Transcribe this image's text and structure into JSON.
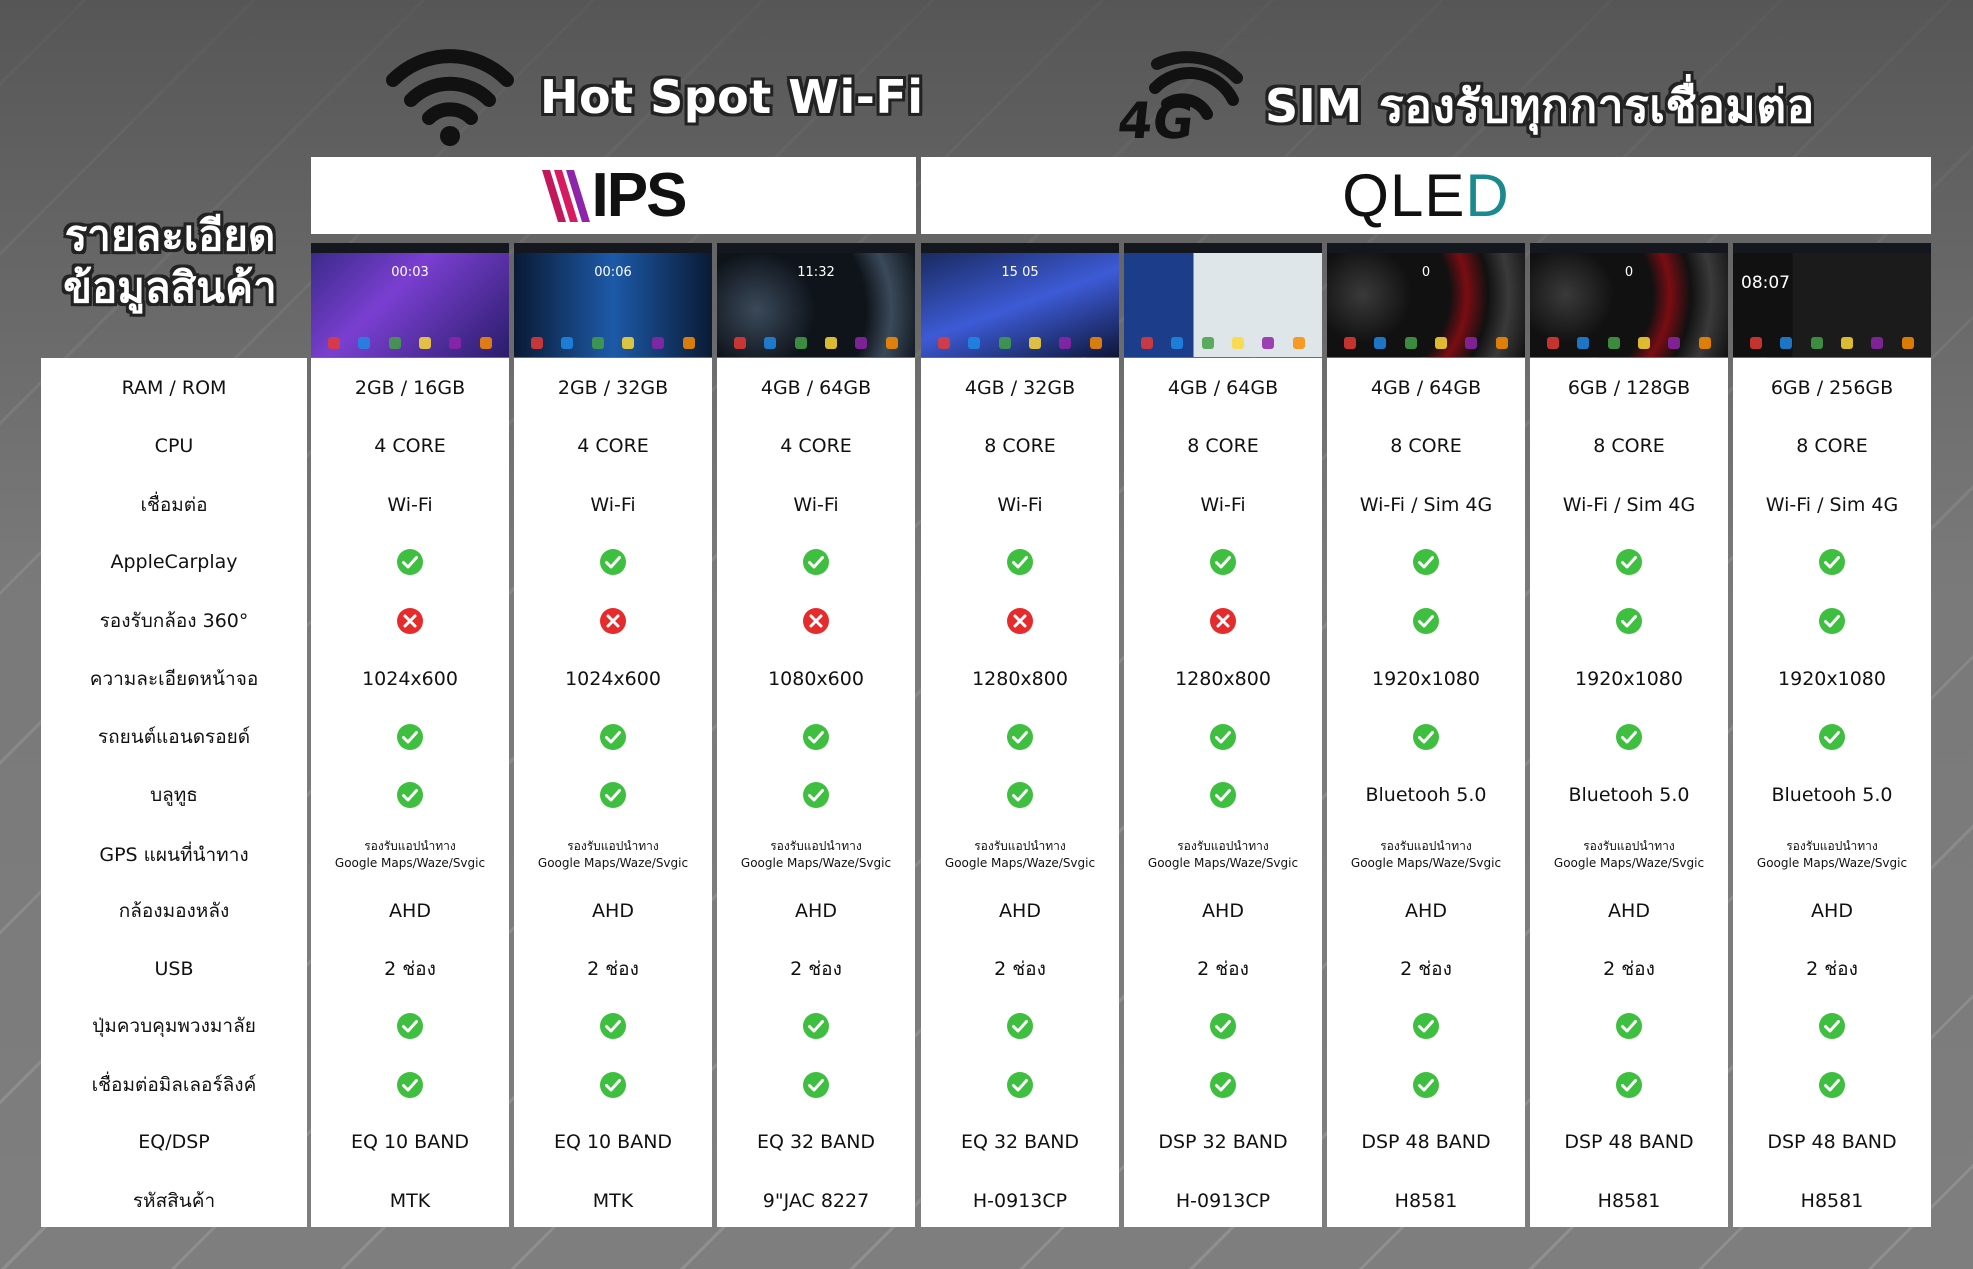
{
  "header": {
    "hotspot_label": "Hot Spot Wi-Fi",
    "sim_label": "SIM รองรับทุกการเชื่อมต่อ",
    "sim_badge": "4G"
  },
  "side_title": [
    "รายละเอียด",
    "ข้อมูลสินค้า"
  ],
  "brands": {
    "ips": "IPS",
    "qled": "QLED"
  },
  "colors": {
    "ok": "#3fbf3f",
    "no": "#e52b2b",
    "ips_stripes": [
      "#c2185b",
      "#d81b60",
      "#8e24aa"
    ]
  },
  "row_labels": [
    "RAM / ROM",
    "CPU",
    "เชื่อมต่อ",
    "AppleCarplay",
    "รองรับกล้อง 360°",
    "ความละเอียดหน้าจอ",
    "รถยนต์แอนดรอยด์",
    "บลูทูธ",
    "GPS แผนที่นำทาง",
    "กล้องมองหลัง",
    "USB",
    "ปุ่มควบคุมพวงมาลัย",
    "เชื่อมต่อมิลเลอร์ลิงค์",
    "EQ/DSP",
    "รหัสสินค้า"
  ],
  "screens": [
    {
      "clock": "00:03"
    },
    {
      "clock": "00:06"
    },
    {
      "clock": "11:32"
    },
    {
      "clock": "15 05"
    },
    {
      "clock": ""
    },
    {
      "clock": "0"
    },
    {
      "clock": "0"
    },
    {
      "clock": "08:07"
    }
  ],
  "gps_line1": "รองรับแอปนำทาง",
  "gps_line2": "Google Maps/Waze/Svgic",
  "products": [
    {
      "ram": "2GB / 16GB",
      "cpu": "4 CORE",
      "conn": "Wi-Fi",
      "carplay": "ok",
      "cam360": "no",
      "res": "1024x600",
      "aauto": "ok",
      "bt": "ok",
      "rear": "AHD",
      "usb": "2 ช่อง",
      "wheel": "ok",
      "mirror": "ok",
      "eq": "EQ 10 BAND",
      "code": "MTK"
    },
    {
      "ram": "2GB / 32GB",
      "cpu": "4 CORE",
      "conn": "Wi-Fi",
      "carplay": "ok",
      "cam360": "no",
      "res": "1024x600",
      "aauto": "ok",
      "bt": "ok",
      "rear": "AHD",
      "usb": "2 ช่อง",
      "wheel": "ok",
      "mirror": "ok",
      "eq": "EQ 10 BAND",
      "code": "MTK"
    },
    {
      "ram": "4GB / 64GB",
      "cpu": "4 CORE",
      "conn": "Wi-Fi",
      "carplay": "ok",
      "cam360": "no",
      "res": "1080x600",
      "aauto": "ok",
      "bt": "ok",
      "rear": "AHD",
      "usb": "2 ช่อง",
      "wheel": "ok",
      "mirror": "ok",
      "eq": "EQ 32 BAND",
      "code": "9\"JAC 8227"
    },
    {
      "ram": "4GB / 32GB",
      "cpu": "8 CORE",
      "conn": "Wi-Fi",
      "carplay": "ok",
      "cam360": "no",
      "res": "1280x800",
      "aauto": "ok",
      "bt": "ok",
      "rear": "AHD",
      "usb": "2 ช่อง",
      "wheel": "ok",
      "mirror": "ok",
      "eq": "EQ 32 BAND",
      "code": "H-0913CP"
    },
    {
      "ram": "4GB / 64GB",
      "cpu": "8 CORE",
      "conn": "Wi-Fi",
      "carplay": "ok",
      "cam360": "no",
      "res": "1280x800",
      "aauto": "ok",
      "bt": "ok",
      "rear": "AHD",
      "usb": "2 ช่อง",
      "wheel": "ok",
      "mirror": "ok",
      "eq": "DSP 32 BAND",
      "code": "H-0913CP"
    },
    {
      "ram": "4GB / 64GB",
      "cpu": "8 CORE",
      "conn": "Wi-Fi / Sim 4G",
      "carplay": "ok",
      "cam360": "ok",
      "res": "1920x1080",
      "aauto": "ok",
      "bt": "Bluetooh 5.0",
      "rear": "AHD",
      "usb": "2 ช่อง",
      "wheel": "ok",
      "mirror": "ok",
      "eq": "DSP 48 BAND",
      "code": "H8581"
    },
    {
      "ram": "6GB / 128GB",
      "cpu": "8 CORE",
      "conn": "Wi-Fi / Sim 4G",
      "carplay": "ok",
      "cam360": "ok",
      "res": "1920x1080",
      "aauto": "ok",
      "bt": "Bluetooh 5.0",
      "rear": "AHD",
      "usb": "2 ช่อง",
      "wheel": "ok",
      "mirror": "ok",
      "eq": "DSP 48 BAND",
      "code": "H8581"
    },
    {
      "ram": "6GB / 256GB",
      "cpu": "8 CORE",
      "conn": "Wi-Fi / Sim 4G",
      "carplay": "ok",
      "cam360": "ok",
      "res": "1920x1080",
      "aauto": "ok",
      "bt": "Bluetooh 5.0",
      "rear": "AHD",
      "usb": "2 ช่อง",
      "wheel": "ok",
      "mirror": "ok",
      "eq": "DSP 48 BAND",
      "code": "H8581"
    }
  ]
}
